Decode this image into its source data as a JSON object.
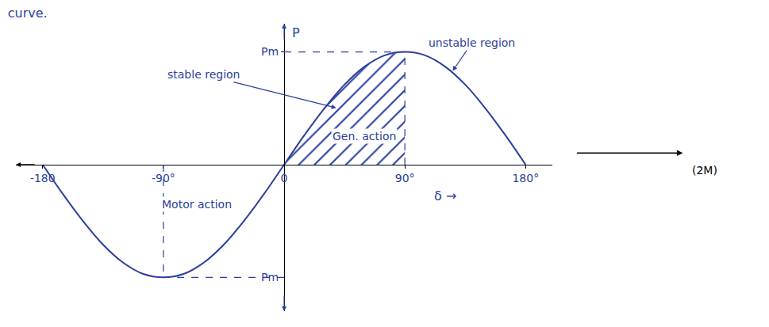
{
  "chart_data": {
    "type": "line",
    "title": "curve.",
    "x_label": "δ →",
    "y_label": "P",
    "x": [
      -180,
      -165,
      -150,
      -135,
      -120,
      -105,
      -90,
      -75,
      -60,
      -45,
      -30,
      -15,
      0,
      15,
      30,
      45,
      60,
      75,
      90,
      105,
      120,
      135,
      150,
      165,
      180
    ],
    "values": [
      0,
      -0.26,
      -0.5,
      -0.71,
      -0.87,
      -0.97,
      -1,
      -0.97,
      -0.87,
      -0.71,
      -0.5,
      -0.26,
      0,
      0.26,
      0.5,
      0.71,
      0.87,
      0.97,
      1,
      0.97,
      0.87,
      0.71,
      0.5,
      0.26,
      0
    ],
    "xlim": [
      -200,
      200
    ],
    "ylim": [
      -1.3,
      1.25
    ],
    "xticks": [
      -180,
      {
        "value": -90,
        "label": "-90°"
      },
      0,
      {
        "value": 90,
        "label": "90°"
      },
      {
        "value": 180,
        "label": "180°"
      }
    ],
    "yticks": [
      {
        "value": 1,
        "label": "Pm"
      },
      {
        "value": -1,
        "label": "Pm"
      }
    ],
    "grid": false,
    "color": "#2b3f9e",
    "shade_x": [
      0,
      90
    ],
    "annotations": [
      {
        "text": "stable region",
        "x": -60,
        "y": 0.8,
        "arrow_to": [
          40,
          0.5
        ]
      },
      {
        "text": "unstable region",
        "x": 140,
        "y": 1.08,
        "arrow_to": [
          125,
          0.82
        ]
      },
      {
        "text": "Gen. action",
        "x": 60,
        "y": 0.25
      },
      {
        "text": "Motor action",
        "x": -65,
        "y": -0.35
      }
    ],
    "note": "(2M)"
  }
}
